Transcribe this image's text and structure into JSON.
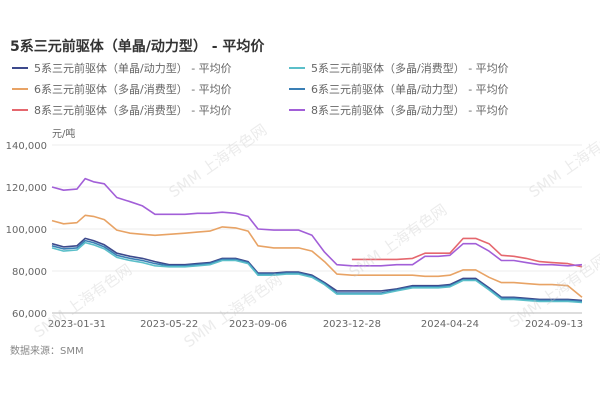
{
  "title": "5系三元前驱体（单晶/动力型） - 平均价",
  "unit_label": "元/吨",
  "source": "数据来源：SMM",
  "watermark": "SMM 上海有色网",
  "legend": [
    {
      "label": "5系三元前驱体（单晶/动力型） - 平均价",
      "color": "#3d4a8c"
    },
    {
      "label": "5系三元前驱体（多晶/消费型） - 平均价",
      "color": "#5bbfc9"
    },
    {
      "label": "6系三元前驱体（多晶/消费型） - 平均价",
      "color": "#e8a365"
    },
    {
      "label": "6系三元前驱体（单晶/动力型） - 平均价",
      "color": "#3a7fb5"
    },
    {
      "label": "8系三元前驱体（多晶/消费型） - 平均价",
      "color": "#e5676e"
    },
    {
      "label": "8系三元前驱体（多晶/动力型） - 平均价",
      "color": "#a25fd8"
    }
  ],
  "chart_data": {
    "type": "line",
    "title": "5系三元前驱体（单晶/动力型） - 平均价",
    "xlabel": "",
    "ylabel": "元/吨",
    "ylim": [
      60000,
      140000
    ],
    "yticks": [
      60000,
      80000,
      100000,
      120000,
      140000
    ],
    "ytick_labels": [
      "60,000",
      "80,000",
      "100,000",
      "120,000",
      "140,000"
    ],
    "xtick_labels": [
      "2023-01-31",
      "2023-05-22",
      "2023-09-06",
      "2023-12-28",
      "2024-04-24",
      "2024-09-13"
    ],
    "grid": "horizontal",
    "legend_position": "top",
    "x": [
      "2023-01-01",
      "2023-01-15",
      "2023-01-31",
      "2023-02-10",
      "2023-02-20",
      "2023-03-05",
      "2023-03-20",
      "2023-04-05",
      "2023-04-20",
      "2023-05-05",
      "2023-05-22",
      "2023-06-10",
      "2023-06-25",
      "2023-07-10",
      "2023-07-25",
      "2023-08-10",
      "2023-08-25",
      "2023-09-06",
      "2023-09-25",
      "2023-10-10",
      "2023-10-25",
      "2023-11-10",
      "2023-11-25",
      "2023-12-10",
      "2023-12-28",
      "2024-01-15",
      "2024-02-01",
      "2024-02-20",
      "2024-03-10",
      "2024-03-25",
      "2024-04-10",
      "2024-04-24",
      "2024-05-10",
      "2024-05-25",
      "2024-06-10",
      "2024-06-25",
      "2024-07-10",
      "2024-07-25",
      "2024-08-10",
      "2024-08-25",
      "2024-09-13",
      "2024-09-30"
    ],
    "series": [
      {
        "name": "5系三元前驱体（单晶/动力型） - 平均价",
        "values": [
          93000,
          91500,
          92000,
          95500,
          94500,
          92500,
          88500,
          87000,
          86000,
          84500,
          83000,
          83000,
          83500,
          84000,
          86000,
          86000,
          84500,
          79000,
          79000,
          79500,
          79500,
          78000,
          74500,
          70500,
          70500,
          70500,
          70500,
          71500,
          73000,
          73000,
          73000,
          73500,
          76500,
          76500,
          72000,
          67500,
          67500,
          67000,
          66500,
          66500,
          66500,
          66000
        ]
      },
      {
        "name": "5系三元前驱体（多晶/消费型） - 平均价",
        "values": [
          91000,
          89500,
          90000,
          93500,
          92500,
          90500,
          86500,
          85000,
          84000,
          82500,
          82000,
          82000,
          82500,
          83000,
          85000,
          85000,
          83500,
          78000,
          78000,
          78500,
          78500,
          77000,
          73500,
          69000,
          69000,
          69000,
          69000,
          70500,
          72000,
          72000,
          72000,
          72500,
          75500,
          75500,
          71000,
          66500,
          66500,
          66000,
          65500,
          65500,
          65500,
          65000
        ]
      },
      {
        "name": "6系三元前驱体（多晶/消费型） - 平均价",
        "values": [
          104000,
          102500,
          103000,
          106500,
          106000,
          104500,
          99500,
          98000,
          97500,
          97000,
          97500,
          98000,
          98500,
          99000,
          101000,
          100500,
          99000,
          92000,
          91000,
          91000,
          91000,
          89500,
          84500,
          78500,
          78000,
          78000,
          78000,
          78000,
          78000,
          77500,
          77500,
          78000,
          80500,
          80500,
          77000,
          74500,
          74500,
          74000,
          73500,
          73500,
          73000,
          67500
        ]
      },
      {
        "name": "6系三元前驱体（单晶/动力型） - 平均价",
        "values": [
          92000,
          90500,
          91000,
          94500,
          93500,
          91500,
          87500,
          86000,
          85000,
          83500,
          82500,
          82500,
          83000,
          83500,
          85500,
          85500,
          84000,
          78500,
          78500,
          79000,
          79000,
          77500,
          74000,
          69500,
          69500,
          69500,
          69500,
          71000,
          72500,
          72500,
          72500,
          73000,
          75800,
          75800,
          71500,
          67000,
          67000,
          66500,
          66000,
          66000,
          66000,
          65500
        ]
      },
      {
        "name": "8系三元前驱体（多晶/消费型） - 平均价",
        "values": [
          null,
          null,
          null,
          null,
          null,
          null,
          null,
          null,
          null,
          null,
          null,
          null,
          null,
          null,
          null,
          null,
          null,
          null,
          null,
          null,
          null,
          null,
          null,
          null,
          85500,
          85500,
          85500,
          85500,
          86000,
          88500,
          88500,
          88500,
          95500,
          95500,
          93000,
          87500,
          87000,
          86000,
          84500,
          84000,
          83500,
          82000
        ]
      },
      {
        "name": "8系三元前驱体（多晶/动力型） - 平均价",
        "values": [
          120000,
          118500,
          119000,
          124000,
          122500,
          121500,
          115000,
          113000,
          111000,
          107000,
          107000,
          107000,
          107500,
          107500,
          108000,
          107500,
          106000,
          100000,
          99500,
          99500,
          99500,
          97000,
          89000,
          83000,
          82500,
          82500,
          82500,
          83000,
          83000,
          87000,
          87000,
          87500,
          93000,
          93000,
          89500,
          85000,
          85000,
          84000,
          83000,
          83000,
          82500,
          83000
        ]
      }
    ]
  },
  "axis": {
    "y_labels": [
      "140,000",
      "120,000",
      "100,000",
      "80,000",
      "60,000"
    ],
    "x_labels": [
      "2023-01-31",
      "2023-05-22",
      "2023-09-06",
      "2023-12-28",
      "2024-04-24",
      "2024-09-13"
    ]
  }
}
